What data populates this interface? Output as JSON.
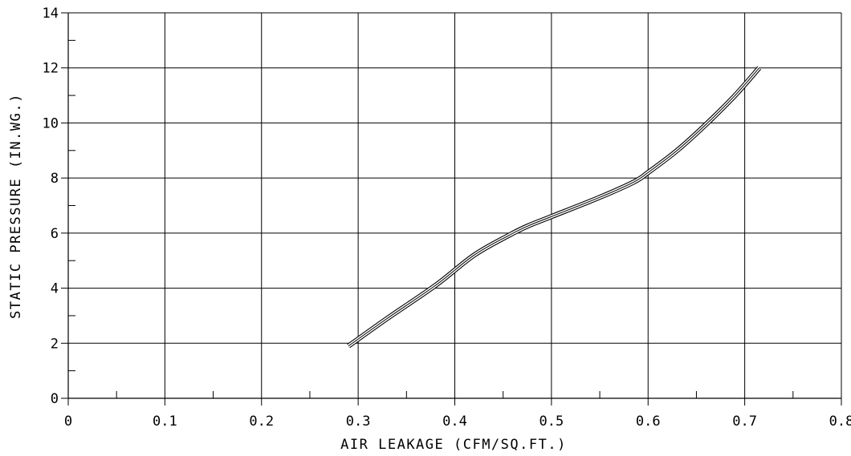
{
  "chart_data": {
    "type": "line",
    "title": "",
    "xlabel": "AIR LEAKAGE (CFM/SQ.FT.)",
    "ylabel": "STATIC PRESSURE (IN.WG.)",
    "xlim": [
      0,
      0.8
    ],
    "ylim": [
      0,
      14
    ],
    "x_ticks": [
      0,
      0.1,
      0.2,
      0.3,
      0.4,
      0.5,
      0.6,
      0.7,
      0.8
    ],
    "x_tick_labels": [
      "0",
      "0.1",
      "0.2",
      "0.3",
      "0.4",
      "0.5",
      "0.6",
      "0.7",
      "0.8"
    ],
    "x_minor_ticks": [
      0.05,
      0.15,
      0.25,
      0.35,
      0.45,
      0.55,
      0.65,
      0.75
    ],
    "y_ticks": [
      0,
      2,
      4,
      6,
      8,
      10,
      12,
      14
    ],
    "y_tick_labels": [
      "0",
      "2",
      "4",
      "6",
      "8",
      "10",
      "12",
      "14"
    ],
    "y_minor_ticks": [
      1,
      3,
      5,
      7,
      9,
      11,
      13
    ],
    "grid": true,
    "legend": "none",
    "line_style": "triple-line",
    "series": [
      {
        "x": [
          0.29,
          0.33,
          0.38,
          0.42,
          0.455,
          0.475,
          0.5,
          0.55,
          0.585,
          0.6,
          0.63,
          0.66,
          0.69,
          0.715
        ],
        "y": [
          1.9,
          2.9,
          4.1,
          5.2,
          5.9,
          6.25,
          6.6,
          7.3,
          7.85,
          8.2,
          9.0,
          9.95,
          11.0,
          12.0
        ]
      }
    ],
    "colors": {
      "line": "#000000",
      "grid": "#000000",
      "background": "#ffffff"
    }
  }
}
